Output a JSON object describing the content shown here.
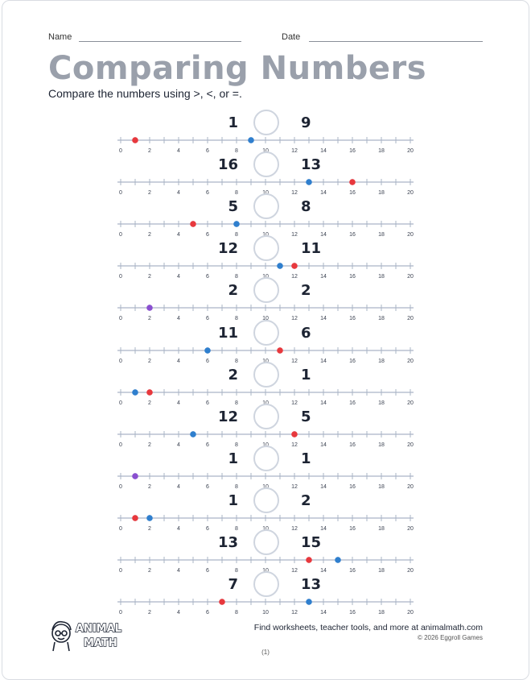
{
  "header": {
    "name_label": "Name",
    "date_label": "Date"
  },
  "title": "Comparing Numbers",
  "instructions": "Compare the numbers using >, <, or =.",
  "number_line": {
    "min": 0,
    "max": 20,
    "tick_labels": [
      "0",
      "2",
      "4",
      "6",
      "8",
      "10",
      "12",
      "14",
      "16",
      "18",
      "20"
    ]
  },
  "colors": {
    "left_dot": "#e8383d",
    "right_dot": "#2f7fce",
    "equal_dot": "#8a4fd0",
    "line": "#aab4c6"
  },
  "problems": [
    {
      "left": "1",
      "right": "9",
      "left_value": 1,
      "right_value": 9
    },
    {
      "left": "16",
      "right": "13",
      "left_value": 16,
      "right_value": 13
    },
    {
      "left": "5",
      "right": "8",
      "left_value": 5,
      "right_value": 8
    },
    {
      "left": "12",
      "right": "11",
      "left_value": 12,
      "right_value": 11
    },
    {
      "left": "2",
      "right": "2",
      "left_value": 2,
      "right_value": 2
    },
    {
      "left": "11",
      "right": "6",
      "left_value": 11,
      "right_value": 6
    },
    {
      "left": "2",
      "right": "1",
      "left_value": 2,
      "right_value": 1
    },
    {
      "left": "12",
      "right": "5",
      "left_value": 12,
      "right_value": 5
    },
    {
      "left": "1",
      "right": "1",
      "left_value": 1,
      "right_value": 1
    },
    {
      "left": "1",
      "right": "2",
      "left_value": 1,
      "right_value": 2
    },
    {
      "left": "13",
      "right": "15",
      "left_value": 13,
      "right_value": 15
    },
    {
      "left": "7",
      "right": "13",
      "left_value": 7,
      "right_value": 13
    }
  ],
  "footer": {
    "logo_text": "ANIMAL MATH",
    "promo": "Find worksheets, teacher tools, and more at animalmath.com",
    "copyright": "© 2026 Eggroll Games",
    "page": "(1)"
  }
}
